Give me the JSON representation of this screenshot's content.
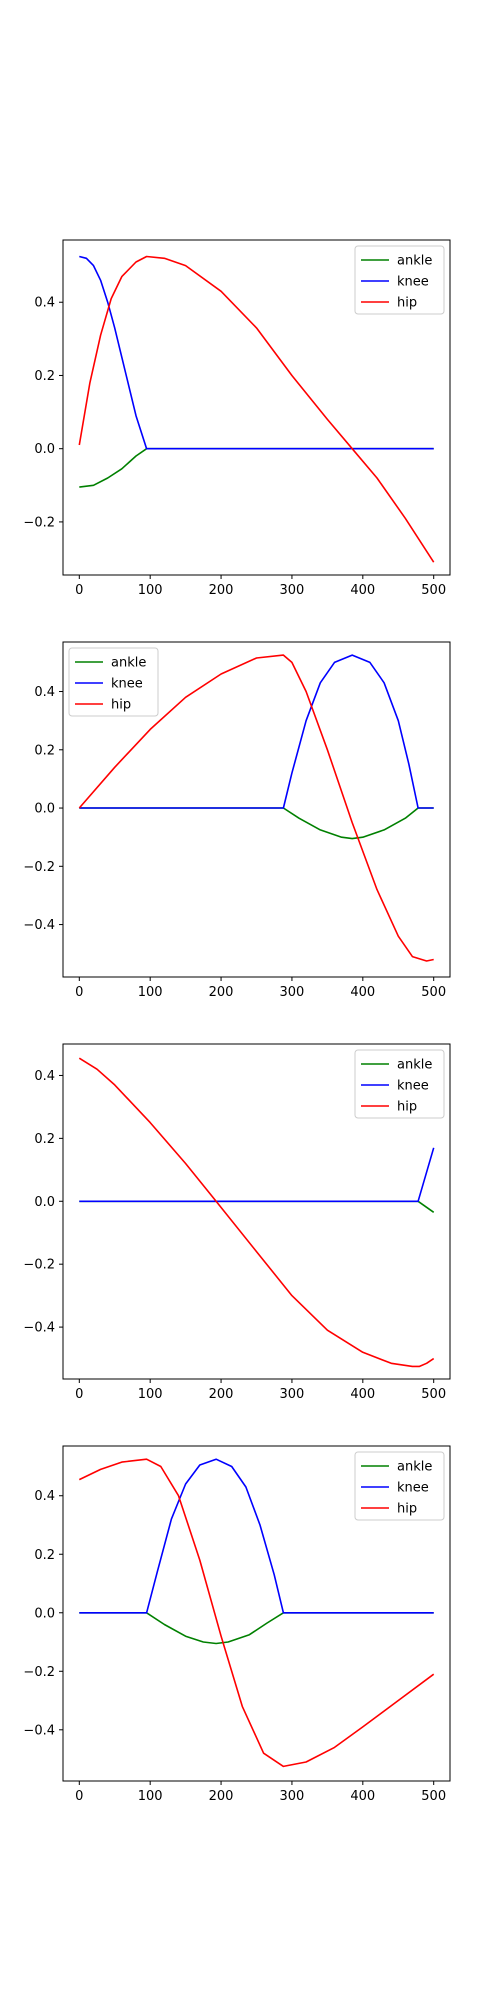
{
  "chart_data": [
    {
      "type": "line",
      "xlim": [
        -23,
        523
      ],
      "ylim": [
        -0.345,
        0.57
      ],
      "xticks": [
        "0",
        "100",
        "200",
        "300",
        "400",
        "500"
      ],
      "yticks": [
        "-0.2",
        "0.0",
        "0.2",
        "0.4"
      ],
      "legend_position": "top-right",
      "series": [
        {
          "name": "ankle",
          "color": "#008000",
          "x": [
            0,
            20,
            40,
            60,
            80,
            95,
            500
          ],
          "y": [
            -0.105,
            -0.1,
            -0.08,
            -0.055,
            -0.02,
            0.0,
            0.0
          ]
        },
        {
          "name": "knee",
          "color": "#0000ff",
          "x": [
            0,
            10,
            20,
            30,
            40,
            50,
            60,
            70,
            80,
            95,
            500
          ],
          "y": [
            0.525,
            0.52,
            0.5,
            0.46,
            0.4,
            0.33,
            0.25,
            0.17,
            0.09,
            0.0,
            0.0
          ]
        },
        {
          "name": "hip",
          "color": "#ff0000",
          "x": [
            0,
            15,
            30,
            45,
            60,
            80,
            95,
            120,
            150,
            200,
            250,
            300,
            350,
            385,
            420,
            460,
            500
          ],
          "y": [
            0.01,
            0.18,
            0.31,
            0.41,
            0.47,
            0.51,
            0.525,
            0.52,
            0.5,
            0.43,
            0.33,
            0.2,
            0.08,
            0.0,
            -0.08,
            -0.19,
            -0.31
          ]
        }
      ]
    },
    {
      "type": "line",
      "xlim": [
        -23,
        523
      ],
      "ylim": [
        -0.58,
        0.57
      ],
      "xticks": [
        "0",
        "100",
        "200",
        "300",
        "400",
        "500"
      ],
      "yticks": [
        "-0.4",
        "-0.2",
        "0.0",
        "0.2",
        "0.4"
      ],
      "legend_position": "top-left",
      "series": [
        {
          "name": "ankle",
          "color": "#008000",
          "x": [
            0,
            288,
            310,
            340,
            370,
            385,
            400,
            430,
            460,
            478,
            500
          ],
          "y": [
            0.0,
            0.0,
            -0.035,
            -0.075,
            -0.1,
            -0.105,
            -0.1,
            -0.075,
            -0.035,
            0.0,
            0.0
          ]
        },
        {
          "name": "knee",
          "color": "#0000ff",
          "x": [
            0,
            288,
            300,
            320,
            340,
            360,
            385,
            410,
            430,
            450,
            465,
            478,
            500
          ],
          "y": [
            0.0,
            0.0,
            0.12,
            0.3,
            0.43,
            0.5,
            0.525,
            0.5,
            0.43,
            0.3,
            0.15,
            0.0,
            0.0
          ]
        },
        {
          "name": "hip",
          "color": "#ff0000",
          "x": [
            0,
            50,
            100,
            150,
            200,
            250,
            288,
            300,
            320,
            350,
            385,
            420,
            450,
            470,
            490,
            500
          ],
          "y": [
            0.0,
            0.14,
            0.27,
            0.38,
            0.46,
            0.515,
            0.525,
            0.5,
            0.4,
            0.2,
            -0.05,
            -0.28,
            -0.44,
            -0.51,
            -0.525,
            -0.52
          ]
        }
      ]
    },
    {
      "type": "line",
      "xlim": [
        -23,
        523
      ],
      "ylim": [
        -0.565,
        0.5
      ],
      "xticks": [
        "0",
        "100",
        "200",
        "300",
        "400",
        "500"
      ],
      "yticks": [
        "-0.4",
        "-0.2",
        "0.0",
        "0.2",
        "0.4"
      ],
      "legend_position": "top-right",
      "series": [
        {
          "name": "ankle",
          "color": "#008000",
          "x": [
            0,
            478,
            500
          ],
          "y": [
            0.0,
            0.0,
            -0.035
          ]
        },
        {
          "name": "knee",
          "color": "#0000ff",
          "x": [
            0,
            478,
            500
          ],
          "y": [
            0.0,
            0.0,
            0.17
          ]
        },
        {
          "name": "hip",
          "color": "#ff0000",
          "x": [
            0,
            25,
            50,
            100,
            150,
            193,
            250,
            300,
            350,
            400,
            440,
            470,
            480,
            490,
            500
          ],
          "y": [
            0.455,
            0.42,
            0.37,
            0.25,
            0.12,
            0.0,
            -0.16,
            -0.3,
            -0.41,
            -0.48,
            -0.515,
            -0.525,
            -0.525,
            -0.515,
            -0.5
          ]
        }
      ]
    },
    {
      "type": "line",
      "xlim": [
        -23,
        523
      ],
      "ylim": [
        -0.575,
        0.57
      ],
      "xticks": [
        "0",
        "100",
        "200",
        "300",
        "400",
        "500"
      ],
      "yticks": [
        "-0.4",
        "-0.2",
        "0.0",
        "0.2",
        "0.4"
      ],
      "legend_position": "top-right",
      "series": [
        {
          "name": "ankle",
          "color": "#008000",
          "x": [
            0,
            95,
            120,
            150,
            175,
            193,
            210,
            240,
            265,
            288,
            500
          ],
          "y": [
            0.0,
            0.0,
            -0.04,
            -0.08,
            -0.1,
            -0.105,
            -0.1,
            -0.075,
            -0.035,
            0.0,
            0.0
          ]
        },
        {
          "name": "knee",
          "color": "#0000ff",
          "x": [
            0,
            95,
            110,
            130,
            150,
            170,
            193,
            215,
            235,
            255,
            275,
            288,
            500
          ],
          "y": [
            0.0,
            0.0,
            0.14,
            0.32,
            0.44,
            0.505,
            0.525,
            0.5,
            0.43,
            0.3,
            0.13,
            0.0,
            0.0
          ]
        },
        {
          "name": "hip",
          "color": "#ff0000",
          "x": [
            0,
            30,
            60,
            95,
            115,
            140,
            170,
            200,
            230,
            260,
            288,
            320,
            360,
            400,
            450,
            500
          ],
          "y": [
            0.455,
            0.49,
            0.515,
            0.525,
            0.5,
            0.4,
            0.18,
            -0.08,
            -0.32,
            -0.48,
            -0.525,
            -0.51,
            -0.46,
            -0.39,
            -0.3,
            -0.21
          ]
        }
      ]
    }
  ]
}
